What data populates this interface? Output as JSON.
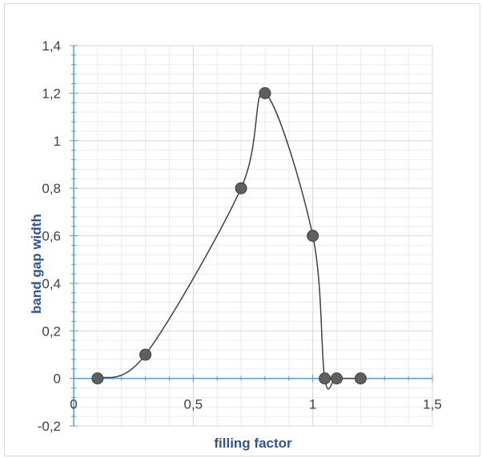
{
  "chart_data": {
    "type": "scatter",
    "title": "",
    "xlabel": "filling factor",
    "ylabel": "band gap width",
    "xlim": [
      0,
      1.5
    ],
    "ylim": [
      -0.2,
      1.4
    ],
    "x_ticks": [
      0,
      0.5,
      1,
      1.5
    ],
    "x_tick_labels": [
      "0",
      "0,5",
      "1",
      "1,5"
    ],
    "y_ticks": [
      -0.2,
      0,
      0.2,
      0.4,
      0.6,
      0.8,
      1,
      1.2,
      1.4
    ],
    "y_tick_labels": [
      "-0,2",
      "0",
      "0,2",
      "0,4",
      "0,6",
      "0,8",
      "1",
      "1,2",
      "1,4"
    ],
    "grid": true,
    "smooth_line": true,
    "series": [
      {
        "x": [
          0.1,
          0.3,
          0.7,
          0.8,
          1.0,
          1.05,
          1.1,
          1.2
        ],
        "y": [
          0,
          0.1,
          0.8,
          1.2,
          0.6,
          0,
          0,
          0
        ]
      }
    ],
    "colors": {
      "marker": "#5f5f5f",
      "marker_stroke": "#404040",
      "line": "#404040",
      "axis": "#5b9bd5",
      "grid_major": "#d9d9d9",
      "grid_minor": "#ececec",
      "tick_label": "#404040",
      "axis_title": "#2f5597"
    }
  }
}
